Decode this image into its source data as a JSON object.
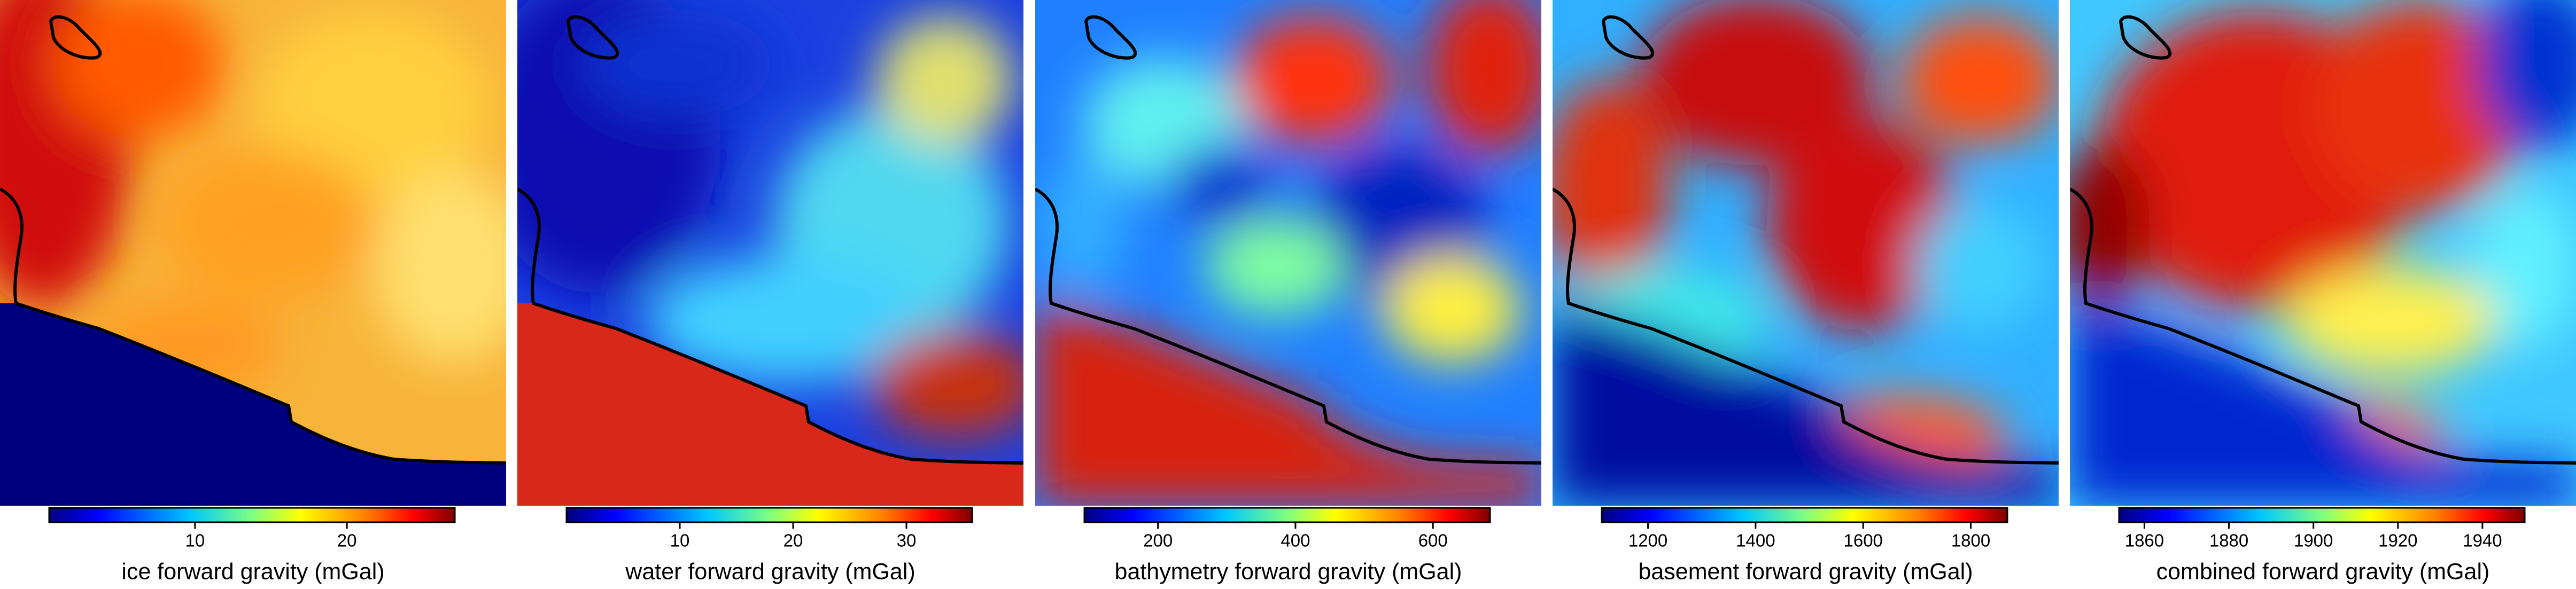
{
  "panels": [
    {
      "label": "ice forward gravity (mGal)",
      "colorbar": {
        "range": [
          0.4,
          27.1
        ],
        "ticks": [
          10,
          20
        ]
      }
    },
    {
      "label": "water forward gravity (mGal)",
      "colorbar": {
        "range": [
          0,
          35.8
        ],
        "ticks": [
          10,
          20,
          30
        ]
      }
    },
    {
      "label": "bathymetry forward gravity (mGal)",
      "colorbar": {
        "range": [
          93,
          683
        ],
        "ticks": [
          200,
          400,
          600
        ]
      }
    },
    {
      "label": "basement forward gravity (mGal)",
      "colorbar": {
        "range": [
          1114,
          1868
        ],
        "ticks": [
          1200,
          1400,
          1600,
          1800
        ]
      }
    },
    {
      "label": "combined forward gravity (mGal)",
      "colorbar": {
        "range": [
          1854,
          1950
        ],
        "ticks": [
          1860,
          1880,
          1900,
          1920,
          1940
        ]
      }
    }
  ]
}
